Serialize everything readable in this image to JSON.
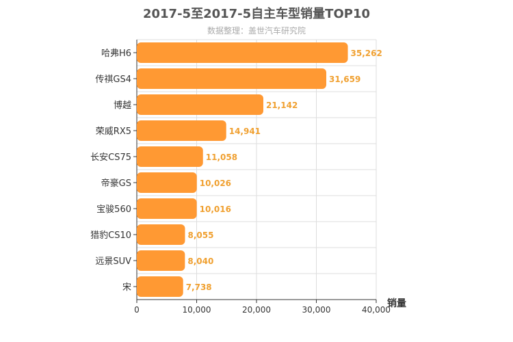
{
  "title": "2017-5至2017-5自主车型销量TOP10",
  "subtitle": "数据整理：盖世汽车研究院",
  "colors": {
    "bar": "#FF9933",
    "value_label": "#F0A030",
    "grid": "#dddddd",
    "axis": "#333333"
  },
  "chart_data": {
    "type": "bar",
    "orientation": "horizontal",
    "title": "2017-5至2017-5自主车型销量TOP10",
    "subtitle": "数据整理：盖世汽车研究院",
    "xlabel": "销量",
    "ylabel": "",
    "categories": [
      "哈弗H6",
      "传祺GS4",
      "博越",
      "荣威RX5",
      "长安CS75",
      "帝豪GS",
      "宝骏560",
      "猎豹CS10",
      "远景SUV",
      "宋"
    ],
    "values": [
      35262,
      31659,
      21142,
      14941,
      11058,
      10026,
      10016,
      8055,
      8040,
      7738
    ],
    "value_labels": [
      "35,262",
      "31,659",
      "21,142",
      "14,941",
      "11,058",
      "10,026",
      "10,016",
      "8,055",
      "8,040",
      "7,738"
    ],
    "xlim": [
      0,
      40000
    ],
    "xticks": [
      "0",
      "10,000",
      "20,000",
      "30,000",
      "40,000"
    ],
    "grid": true
  }
}
